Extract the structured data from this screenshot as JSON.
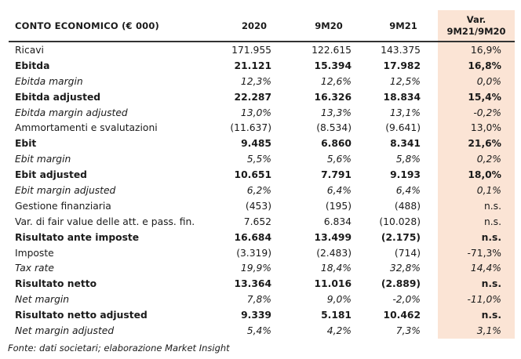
{
  "header": {
    "title": "CONTO ECONOMICO (€ 000)",
    "col_2020": "2020",
    "col_9m20": "9M20",
    "col_9m21": "9M21",
    "col_var_line1": "Var.",
    "col_var_line2": "9M21/9M20"
  },
  "rows": [
    {
      "label": "Ricavi",
      "v2020": "171.955",
      "v9m20": "122.615",
      "v9m21": "143.375",
      "var": "16,9%"
    },
    {
      "label": "Ebitda",
      "v2020": "21.121",
      "v9m20": "15.394",
      "v9m21": "17.982",
      "var": "16,8%"
    },
    {
      "label": "Ebitda margin",
      "v2020": "12,3%",
      "v9m20": "12,6%",
      "v9m21": "12,5%",
      "var": "0,0%"
    },
    {
      "label": "Ebitda adjusted",
      "v2020": "22.287",
      "v9m20": "16.326",
      "v9m21": "18.834",
      "var": "15,4%"
    },
    {
      "label": "Ebitda margin adjusted",
      "v2020": "13,0%",
      "v9m20": "13,3%",
      "v9m21": "13,1%",
      "var": "-0,2%"
    },
    {
      "label": "Ammortamenti e svalutazioni",
      "v2020": "(11.637)",
      "v9m20": "(8.534)",
      "v9m21": "(9.641)",
      "var": "13,0%"
    },
    {
      "label": "Ebit",
      "v2020": "9.485",
      "v9m20": "6.860",
      "v9m21": "8.341",
      "var": "21,6%"
    },
    {
      "label": "Ebit margin",
      "v2020": "5,5%",
      "v9m20": "5,6%",
      "v9m21": "5,8%",
      "var": "0,2%"
    },
    {
      "label": "Ebit adjusted",
      "v2020": "10.651",
      "v9m20": "7.791",
      "v9m21": "9.193",
      "var": "18,0%"
    },
    {
      "label": "Ebit margin adjusted",
      "v2020": "6,2%",
      "v9m20": "6,4%",
      "v9m21": "6,4%",
      "var": "0,1%"
    },
    {
      "label": "Gestione finanziaria",
      "v2020": "(453)",
      "v9m20": "(195)",
      "v9m21": "(488)",
      "var": "n.s."
    },
    {
      "label": "Var. di fair value delle att. e pass. fin.",
      "v2020": "7.652",
      "v9m20": "6.834",
      "v9m21": "(10.028)",
      "var": "n.s."
    },
    {
      "label": "Risultato ante imposte",
      "v2020": "16.684",
      "v9m20": "13.499",
      "v9m21": "(2.175)",
      "var": "n.s."
    },
    {
      "label": "Imposte",
      "v2020": "(3.319)",
      "v9m20": "(2.483)",
      "v9m21": "(714)",
      "var": "-71,3%"
    },
    {
      "label": "Tax rate",
      "v2020": "19,9%",
      "v9m20": "18,4%",
      "v9m21": "32,8%",
      "var": "14,4%"
    },
    {
      "label": "Risultato netto",
      "v2020": "13.364",
      "v9m20": "11.016",
      "v9m21": "(2.889)",
      "var": "n.s."
    },
    {
      "label": "Net margin",
      "v2020": "7,8%",
      "v9m20": "9,0%",
      "v9m21": "-2,0%",
      "var": "-11,0%"
    },
    {
      "label": "Risultato netto adjusted",
      "v2020": "9.339",
      "v9m20": "5.181",
      "v9m21": "10.462",
      "var": "n.s."
    },
    {
      "label": "Net margin adjusted",
      "v2020": "5,4%",
      "v9m20": "4,2%",
      "v9m21": "7,3%",
      "var": "3,1%"
    }
  ],
  "source": "Fonte: dati societari; elaborazione Market Insight"
}
